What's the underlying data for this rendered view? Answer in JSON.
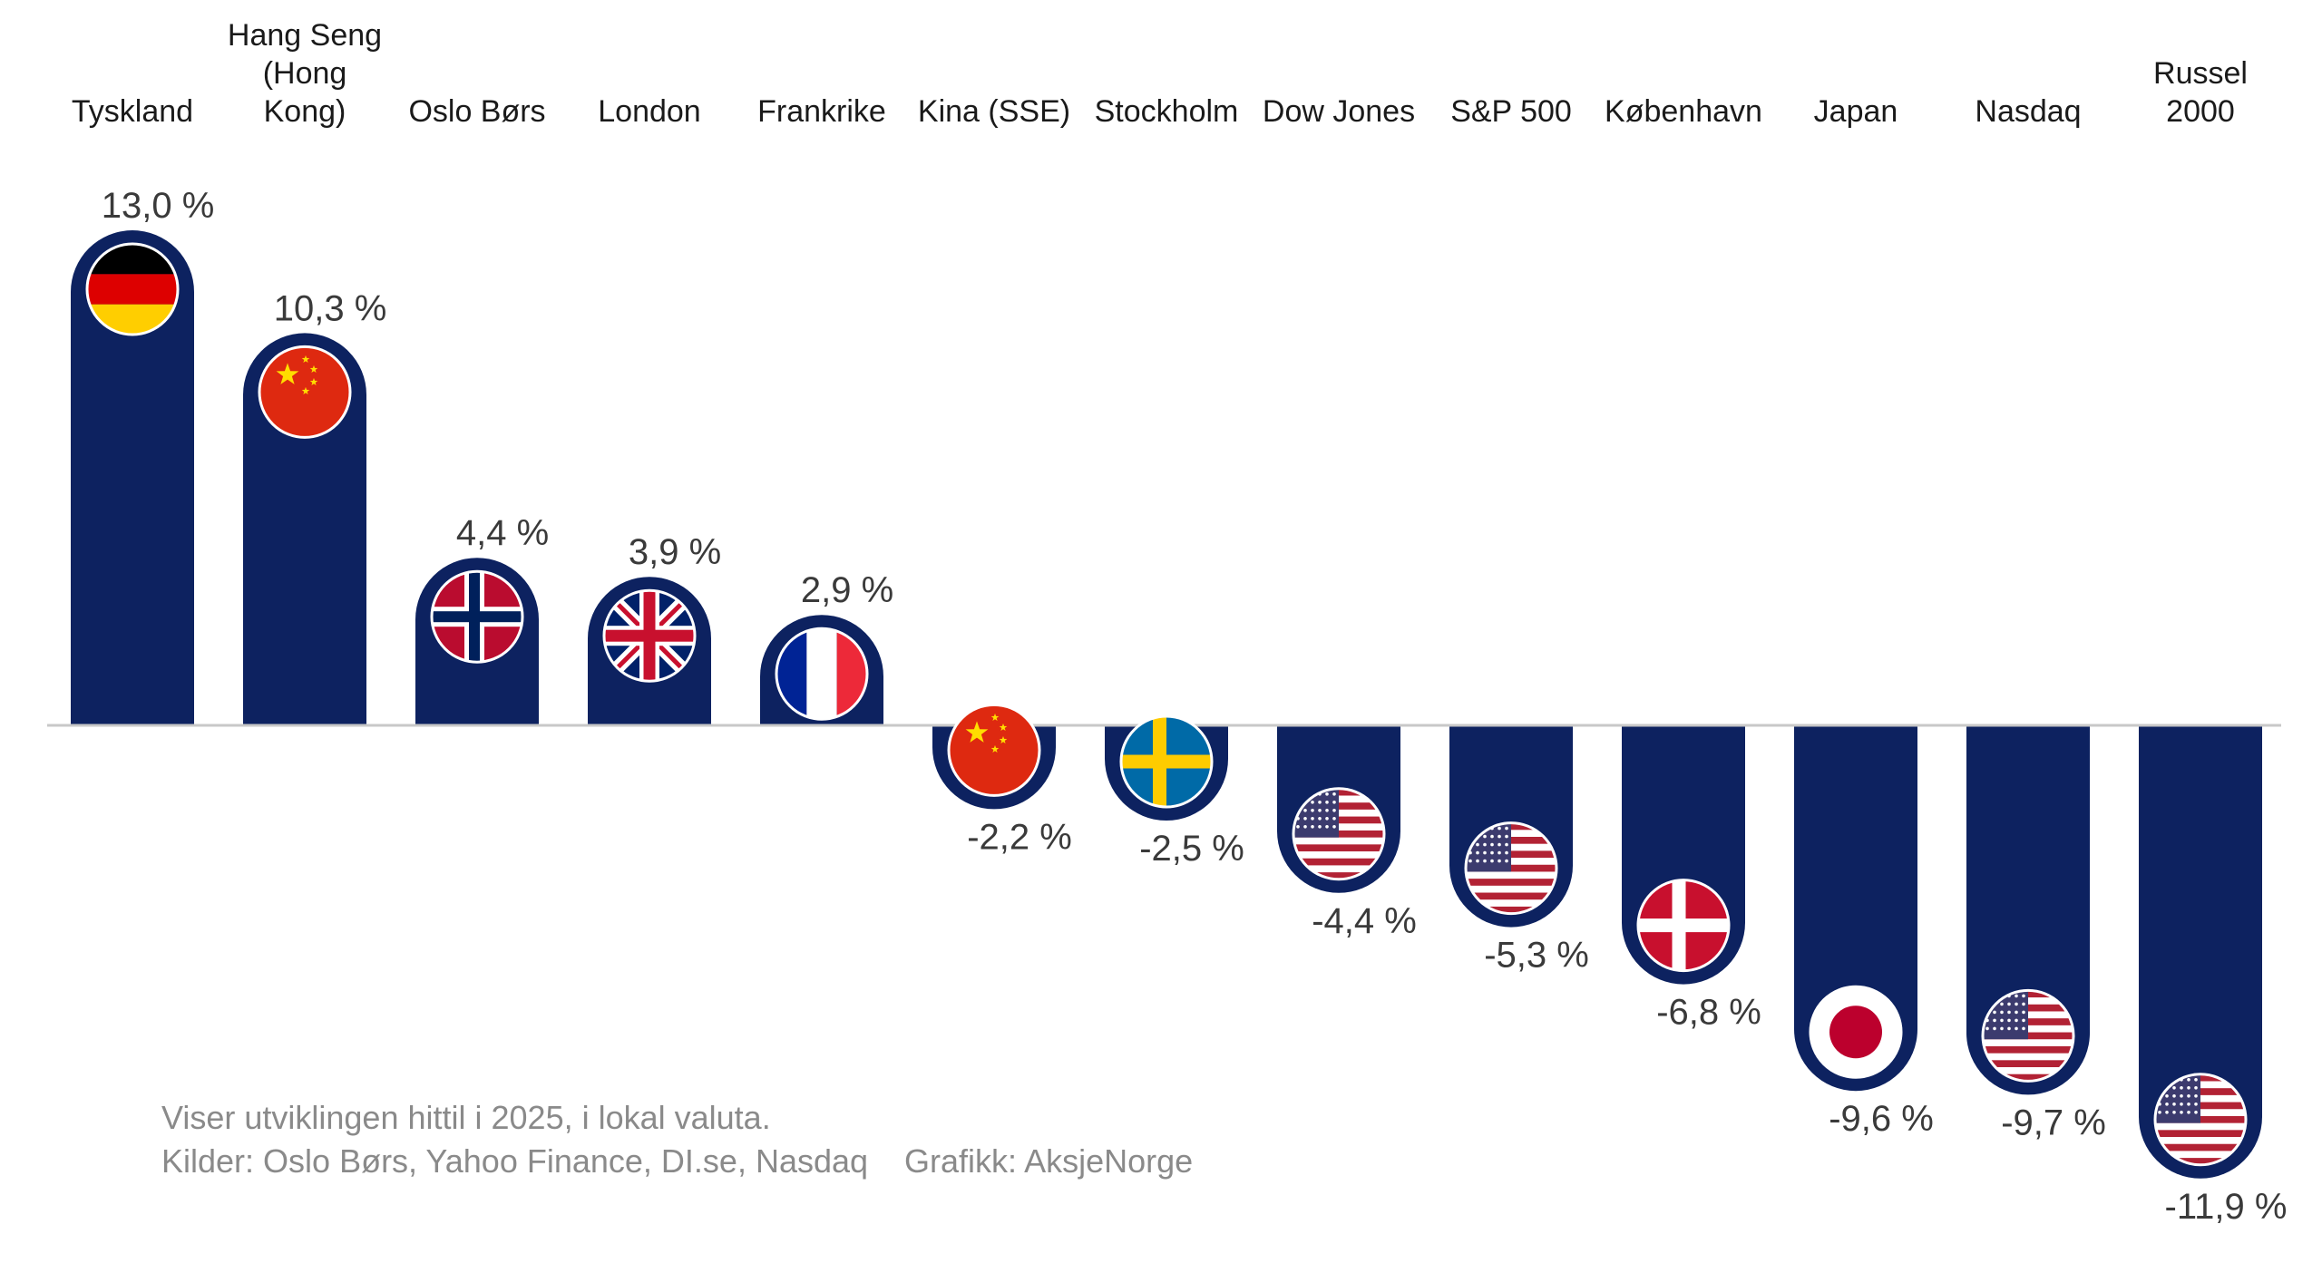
{
  "chart_data": {
    "type": "bar",
    "categories": [
      [
        "Tyskland"
      ],
      [
        "Hang Seng",
        "(Hong",
        "Kong)"
      ],
      [
        "Oslo Børs"
      ],
      [
        "London"
      ],
      [
        "Frankrike"
      ],
      [
        "Kina (SSE)"
      ],
      [
        "Stockholm"
      ],
      [
        "Dow Jones"
      ],
      [
        "S&P 500"
      ],
      [
        "København"
      ],
      [
        "Japan"
      ],
      [
        "Nasdaq"
      ],
      [
        "Russel",
        "2000"
      ]
    ],
    "values": [
      13.0,
      10.3,
      4.4,
      3.9,
      2.9,
      -2.2,
      -2.5,
      -4.4,
      -5.3,
      -6.8,
      -9.6,
      -9.7,
      -11.9
    ],
    "value_labels": [
      "13,0 %",
      "10,3 %",
      "4,4 %",
      "3,9 %",
      "2,9 %",
      "-2,2 %",
      "-2,5 %",
      "-4,4 %",
      "-5,3 %",
      "-6,8 %",
      "-9,6 %",
      "-9,7 %",
      "-11,9 %"
    ],
    "flags": [
      "germany",
      "china",
      "norway",
      "united-kingdom",
      "france",
      "china",
      "sweden",
      "usa",
      "usa",
      "denmark",
      "japan",
      "usa",
      "usa"
    ],
    "ylim": [
      -13.5,
      13.5
    ],
    "bar_color": "#0d2260"
  },
  "footnote": {
    "line1": "Viser utviklingen hittil i 2025, i lokal valuta.",
    "line2": "Kilder: Oslo Børs, Yahoo Finance, DI.se, Nasdaq    Grafikk: AksjeNorge"
  }
}
